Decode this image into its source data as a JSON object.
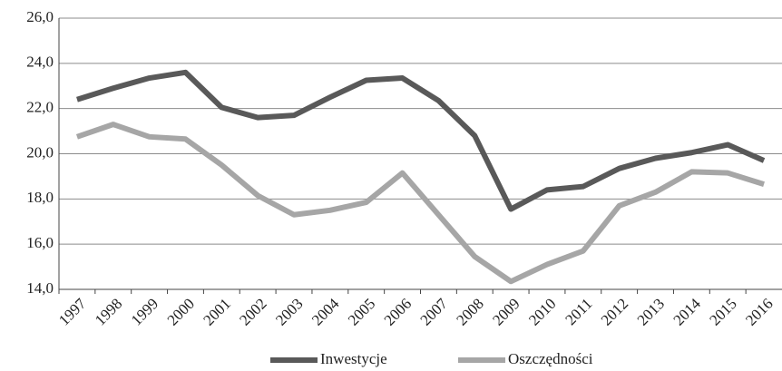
{
  "chart_data": {
    "type": "line",
    "categories": [
      "1997",
      "1998",
      "1999",
      "2000",
      "2001",
      "2002",
      "2003",
      "2004",
      "2005",
      "2006",
      "2007",
      "2008",
      "2009",
      "2010",
      "2011",
      "2012",
      "2013",
      "2014",
      "2015",
      "2016"
    ],
    "series": [
      {
        "name": "Inwestycje",
        "color": "#595959",
        "values": [
          22.4,
          22.9,
          23.35,
          23.6,
          22.05,
          21.6,
          21.7,
          22.5,
          23.25,
          23.35,
          22.35,
          20.8,
          17.55,
          18.4,
          18.55,
          19.35,
          19.8,
          20.05,
          20.4,
          19.7
        ]
      },
      {
        "name": "Oszczędności",
        "color": "#a6a6a6",
        "values": [
          20.75,
          21.3,
          20.75,
          20.65,
          19.5,
          18.15,
          17.3,
          17.5,
          17.85,
          19.15,
          17.3,
          15.45,
          14.35,
          15.1,
          15.7,
          17.7,
          18.3,
          19.2,
          19.15,
          18.65
        ]
      }
    ],
    "ylim": [
      14,
      26
    ],
    "yticks": [
      {
        "value": 14,
        "label": "14,0"
      },
      {
        "value": 16,
        "label": "16,0"
      },
      {
        "value": 18,
        "label": "18,0"
      },
      {
        "value": 20,
        "label": "20,0"
      },
      {
        "value": 22,
        "label": "22,0"
      },
      {
        "value": 24,
        "label": "24,0"
      },
      {
        "value": 26,
        "label": "26,0"
      }
    ],
    "grid": true,
    "legend": "bottom"
  }
}
